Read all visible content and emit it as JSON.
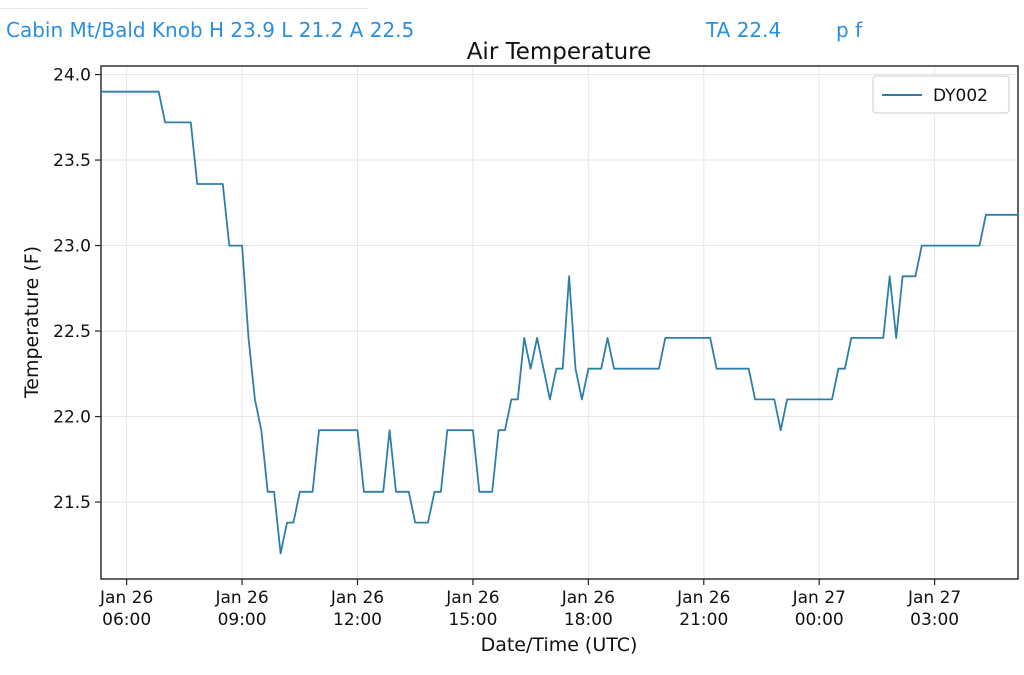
{
  "header": {
    "station_summary": "Cabin Mt/Bald Knob H 23.9 L 21.2 A 22.5",
    "ta_readout": "TA 22.4",
    "pf_toggle": "p f"
  },
  "colors": {
    "header_text": "#2a8fe0",
    "series_line": "#2e7fa8",
    "grid": "#e6e6e6"
  },
  "chart_data": {
    "type": "line",
    "title": "Air Temperature",
    "xlabel": "Date/Time (UTC)",
    "ylabel": "Temperature (F)",
    "ylim": [
      21.05,
      24.05
    ],
    "xlim": [
      "2026-01-26T05:20",
      "2026-01-27T05:10"
    ],
    "yticks": [
      21.5,
      22.0,
      22.5,
      23.0,
      23.5,
      24.0
    ],
    "ytick_labels": [
      "21.5",
      "22.0",
      "22.5",
      "23.0",
      "23.5",
      "24.0"
    ],
    "xticks": [
      "2026-01-26T06:00",
      "2026-01-26T09:00",
      "2026-01-26T12:00",
      "2026-01-26T15:00",
      "2026-01-26T18:00",
      "2026-01-26T21:00",
      "2026-01-27T00:00",
      "2026-01-27T03:00"
    ],
    "xtick_labels": [
      [
        "Jan 26",
        "06:00"
      ],
      [
        "Jan 26",
        "09:00"
      ],
      [
        "Jan 26",
        "12:00"
      ],
      [
        "Jan 26",
        "15:00"
      ],
      [
        "Jan 26",
        "18:00"
      ],
      [
        "Jan 26",
        "21:00"
      ],
      [
        "Jan 27",
        "00:00"
      ],
      [
        "Jan 27",
        "03:00"
      ]
    ],
    "grid": true,
    "legend_position": "top-right",
    "series": [
      {
        "name": "DY002",
        "points": [
          [
            "2026-01-26T05:20",
            23.9
          ],
          [
            "2026-01-26T06:50",
            23.9
          ],
          [
            "2026-01-26T07:00",
            23.72
          ],
          [
            "2026-01-26T07:40",
            23.72
          ],
          [
            "2026-01-26T07:50",
            23.36
          ],
          [
            "2026-01-26T08:30",
            23.36
          ],
          [
            "2026-01-26T08:40",
            23.0
          ],
          [
            "2026-01-26T09:00",
            23.0
          ],
          [
            "2026-01-26T09:10",
            22.46
          ],
          [
            "2026-01-26T09:20",
            22.1
          ],
          [
            "2026-01-26T09:30",
            21.92
          ],
          [
            "2026-01-26T09:40",
            21.56
          ],
          [
            "2026-01-26T09:50",
            21.56
          ],
          [
            "2026-01-26T10:00",
            21.2
          ],
          [
            "2026-01-26T10:10",
            21.38
          ],
          [
            "2026-01-26T10:20",
            21.38
          ],
          [
            "2026-01-26T10:30",
            21.56
          ],
          [
            "2026-01-26T10:50",
            21.56
          ],
          [
            "2026-01-26T11:00",
            21.92
          ],
          [
            "2026-01-26T12:00",
            21.92
          ],
          [
            "2026-01-26T12:10",
            21.56
          ],
          [
            "2026-01-26T12:40",
            21.56
          ],
          [
            "2026-01-26T12:50",
            21.92
          ],
          [
            "2026-01-26T13:00",
            21.56
          ],
          [
            "2026-01-26T13:20",
            21.56
          ],
          [
            "2026-01-26T13:30",
            21.38
          ],
          [
            "2026-01-26T13:50",
            21.38
          ],
          [
            "2026-01-26T14:00",
            21.56
          ],
          [
            "2026-01-26T14:10",
            21.56
          ],
          [
            "2026-01-26T14:20",
            21.92
          ],
          [
            "2026-01-26T15:00",
            21.92
          ],
          [
            "2026-01-26T15:10",
            21.56
          ],
          [
            "2026-01-26T15:30",
            21.56
          ],
          [
            "2026-01-26T15:40",
            21.92
          ],
          [
            "2026-01-26T15:50",
            21.92
          ],
          [
            "2026-01-26T16:00",
            22.1
          ],
          [
            "2026-01-26T16:10",
            22.1
          ],
          [
            "2026-01-26T16:20",
            22.46
          ],
          [
            "2026-01-26T16:30",
            22.28
          ],
          [
            "2026-01-26T16:40",
            22.46
          ],
          [
            "2026-01-26T16:50",
            22.28
          ],
          [
            "2026-01-26T17:00",
            22.1
          ],
          [
            "2026-01-26T17:10",
            22.28
          ],
          [
            "2026-01-26T17:20",
            22.28
          ],
          [
            "2026-01-26T17:30",
            22.82
          ],
          [
            "2026-01-26T17:40",
            22.28
          ],
          [
            "2026-01-26T17:50",
            22.1
          ],
          [
            "2026-01-26T18:00",
            22.28
          ],
          [
            "2026-01-26T18:20",
            22.28
          ],
          [
            "2026-01-26T18:30",
            22.46
          ],
          [
            "2026-01-26T18:40",
            22.28
          ],
          [
            "2026-01-26T19:50",
            22.28
          ],
          [
            "2026-01-26T20:00",
            22.46
          ],
          [
            "2026-01-26T21:10",
            22.46
          ],
          [
            "2026-01-26T21:20",
            22.28
          ],
          [
            "2026-01-26T22:10",
            22.28
          ],
          [
            "2026-01-26T22:20",
            22.1
          ],
          [
            "2026-01-26T22:50",
            22.1
          ],
          [
            "2026-01-26T23:00",
            21.92
          ],
          [
            "2026-01-26T23:10",
            22.1
          ],
          [
            "2026-01-27T00:20",
            22.1
          ],
          [
            "2026-01-27T00:30",
            22.28
          ],
          [
            "2026-01-27T00:40",
            22.28
          ],
          [
            "2026-01-27T00:50",
            22.46
          ],
          [
            "2026-01-27T01:40",
            22.46
          ],
          [
            "2026-01-27T01:50",
            22.82
          ],
          [
            "2026-01-27T02:00",
            22.46
          ],
          [
            "2026-01-27T02:10",
            22.82
          ],
          [
            "2026-01-27T02:30",
            22.82
          ],
          [
            "2026-01-27T02:40",
            23.0
          ],
          [
            "2026-01-27T04:10",
            23.0
          ],
          [
            "2026-01-27T04:20",
            23.18
          ],
          [
            "2026-01-27T05:10",
            23.18
          ]
        ]
      }
    ]
  }
}
